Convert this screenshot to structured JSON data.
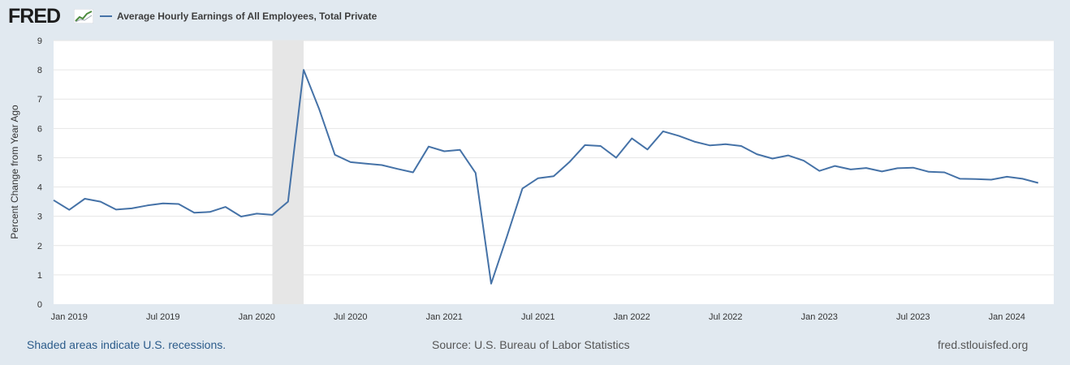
{
  "header": {
    "logo_text": "FRED",
    "logo_icon": "line-chart-icon",
    "legend_label": "Average Hourly Earnings of All Employees, Total Private"
  },
  "footer": {
    "recession_note": "Shaded areas indicate U.S. recessions.",
    "source": "Source: U.S. Bureau of Labor Statistics",
    "site": "fred.stlouisfed.org"
  },
  "colors": {
    "background": "#e1e9f0",
    "plot_background": "#ffffff",
    "series": "#4572a7",
    "recession_shade": "#e6e6e6",
    "grid": "#e6e6e6"
  },
  "chart_data": {
    "type": "line",
    "title": "",
    "xlabel": "",
    "ylabel": "Percent Change from Year Ago",
    "ylim": [
      0,
      9
    ],
    "yticks": [
      0,
      1,
      2,
      3,
      4,
      5,
      6,
      7,
      8,
      9
    ],
    "xlim": [
      "2018-12",
      "2024-04"
    ],
    "xticks": [
      {
        "date": "2019-01",
        "label": "Jan 2019"
      },
      {
        "date": "2019-07",
        "label": "Jul 2019"
      },
      {
        "date": "2020-01",
        "label": "Jan 2020"
      },
      {
        "date": "2020-07",
        "label": "Jul 2020"
      },
      {
        "date": "2021-01",
        "label": "Jan 2021"
      },
      {
        "date": "2021-07",
        "label": "Jul 2021"
      },
      {
        "date": "2022-01",
        "label": "Jan 2022"
      },
      {
        "date": "2022-07",
        "label": "Jul 2022"
      },
      {
        "date": "2023-01",
        "label": "Jan 2023"
      },
      {
        "date": "2023-07",
        "label": "Jul 2023"
      },
      {
        "date": "2024-01",
        "label": "Jan 2024"
      }
    ],
    "grid": "horizontal",
    "recessions": [
      {
        "start": "2020-02",
        "end": "2020-04"
      }
    ],
    "series": [
      {
        "name": "Average Hourly Earnings of All Employees, Total Private",
        "x": [
          "2018-12",
          "2019-01",
          "2019-02",
          "2019-03",
          "2019-04",
          "2019-05",
          "2019-06",
          "2019-07",
          "2019-08",
          "2019-09",
          "2019-10",
          "2019-11",
          "2019-12",
          "2020-01",
          "2020-02",
          "2020-03",
          "2020-04",
          "2020-05",
          "2020-06",
          "2020-07",
          "2020-08",
          "2020-09",
          "2020-10",
          "2020-11",
          "2020-12",
          "2021-01",
          "2021-02",
          "2021-03",
          "2021-04",
          "2021-05",
          "2021-06",
          "2021-07",
          "2021-08",
          "2021-09",
          "2021-10",
          "2021-11",
          "2021-12",
          "2022-01",
          "2022-02",
          "2022-03",
          "2022-04",
          "2022-05",
          "2022-06",
          "2022-07",
          "2022-08",
          "2022-09",
          "2022-10",
          "2022-11",
          "2022-12",
          "2023-01",
          "2023-02",
          "2023-03",
          "2023-04",
          "2023-05",
          "2023-06",
          "2023-07",
          "2023-08",
          "2023-09",
          "2023-10",
          "2023-11",
          "2023-12",
          "2024-01",
          "2024-02",
          "2024-03"
        ],
        "values": [
          3.55,
          3.22,
          3.6,
          3.5,
          3.23,
          3.27,
          3.37,
          3.44,
          3.42,
          3.12,
          3.15,
          3.32,
          2.99,
          3.09,
          3.05,
          3.5,
          8.0,
          6.65,
          5.1,
          4.85,
          4.8,
          4.75,
          4.62,
          4.5,
          5.38,
          5.22,
          5.27,
          4.48,
          0.7,
          2.3,
          3.95,
          4.3,
          4.37,
          4.85,
          5.43,
          5.4,
          5.0,
          5.66,
          5.28,
          5.9,
          5.75,
          5.55,
          5.42,
          5.46,
          5.4,
          5.12,
          4.97,
          5.08,
          4.9,
          4.55,
          4.72,
          4.6,
          4.65,
          4.53,
          4.64,
          4.66,
          4.52,
          4.5,
          4.28,
          4.27,
          4.25,
          4.35,
          4.28,
          4.14
        ]
      }
    ]
  }
}
